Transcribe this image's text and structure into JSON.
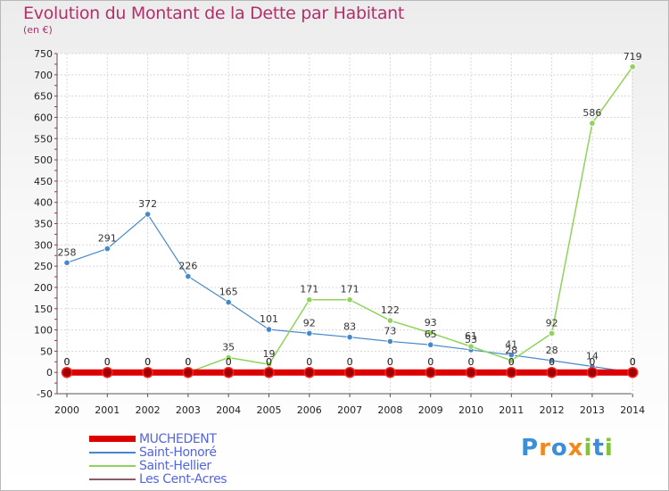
{
  "header": {
    "title": "Evolution du Montant de la Dette par Habitant",
    "subtitle": "(en €)"
  },
  "logo": {
    "text": "Proxiti"
  },
  "chart_data": {
    "type": "line",
    "title": "Evolution du Montant de la Dette par Habitant",
    "subtitle": "(en €)",
    "xlabel": "",
    "ylabel": "",
    "x": [
      "2000",
      "2001",
      "2002",
      "2003",
      "2004",
      "2005",
      "2006",
      "2007",
      "2008",
      "2009",
      "2010",
      "2011",
      "2012",
      "2013",
      "2014"
    ],
    "ylim": [
      -50,
      750
    ],
    "yticks": [
      -50,
      0,
      50,
      100,
      150,
      200,
      250,
      300,
      350,
      400,
      450,
      500,
      550,
      600,
      650,
      700,
      750
    ],
    "grid": true,
    "legend": "bottom-left",
    "series": [
      {
        "name": "MUCHEDENT",
        "color": "#dd0000",
        "values": [
          0,
          0,
          0,
          0,
          0,
          0,
          0,
          0,
          0,
          0,
          0,
          0,
          0,
          0,
          0
        ],
        "labels": [
          "0",
          "0",
          "0",
          "0",
          "0",
          "0",
          "0",
          "0",
          "0",
          "0",
          "0",
          "0",
          "0",
          "0",
          "0"
        ]
      },
      {
        "name": "Saint-Honoré",
        "color": "#4488cc",
        "values": [
          258,
          291,
          372,
          226,
          165,
          101,
          92,
          83,
          73,
          65,
          53,
          41,
          28,
          14,
          0
        ],
        "labels": [
          "258",
          "291",
          "372",
          "226",
          "165",
          "101",
          "92",
          "83",
          "73",
          "65",
          "53",
          "41",
          "28",
          "14",
          "0"
        ]
      },
      {
        "name": "Saint-Hellier",
        "color": "#8fd35a",
        "values": [
          0,
          0,
          0,
          0,
          35,
          19,
          171,
          171,
          122,
          93,
          61,
          28,
          92,
          586,
          719
        ],
        "labels": [
          "0",
          "0",
          "0",
          "0",
          "35",
          "19",
          "171",
          "171",
          "122",
          "93",
          "61",
          "28",
          "92",
          "586",
          "719"
        ]
      },
      {
        "name": "Les Cent-Acres",
        "color": "#8a5a6a",
        "values": [
          0,
          0,
          0,
          0,
          0,
          0,
          0,
          0,
          0,
          0,
          0,
          0,
          0,
          0,
          0
        ],
        "labels": [
          "0",
          "0",
          "0",
          "0",
          "0",
          "0",
          "0",
          "0",
          "0",
          "0",
          "0",
          "0",
          "0",
          "0",
          "0"
        ]
      }
    ]
  }
}
